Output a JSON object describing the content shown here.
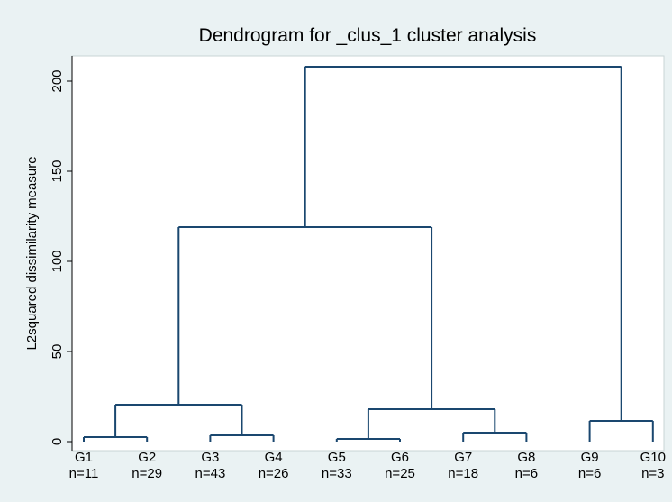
{
  "chart_data": {
    "type": "dendrogram",
    "title": "Dendrogram for _clus_1 cluster analysis",
    "y_label": "L2squared dissimilarity measure",
    "color": "#1a476f",
    "leaves": [
      {
        "label": "G1",
        "n": "n=11"
      },
      {
        "label": "G2",
        "n": "n=29"
      },
      {
        "label": "G3",
        "n": "n=43"
      },
      {
        "label": "G4",
        "n": "n=26"
      },
      {
        "label": "G5",
        "n": "n=33"
      },
      {
        "label": "G6",
        "n": "n=25"
      },
      {
        "label": "G7",
        "n": "n=18"
      },
      {
        "label": "G8",
        "n": "n=6"
      },
      {
        "label": "G9",
        "n": "n=6"
      },
      {
        "label": "G10",
        "n": "n=3"
      }
    ],
    "merges": [
      {
        "children": [
          0,
          1
        ],
        "height": 2.5
      },
      {
        "children": [
          2,
          3
        ],
        "height": 3.5
      },
      {
        "children": [
          10,
          11
        ],
        "height": 20.5
      },
      {
        "children": [
          4,
          5
        ],
        "height": 1.5
      },
      {
        "children": [
          6,
          7
        ],
        "height": 5
      },
      {
        "children": [
          13,
          14
        ],
        "height": 18
      },
      {
        "children": [
          12,
          15
        ],
        "height": 119
      },
      {
        "children": [
          8,
          9
        ],
        "height": 11.5
      },
      {
        "children": [
          16,
          17
        ],
        "height": 208
      }
    ],
    "ylim": [
      -5,
      214
    ],
    "yticks": [
      0,
      50,
      100,
      150,
      200
    ]
  }
}
